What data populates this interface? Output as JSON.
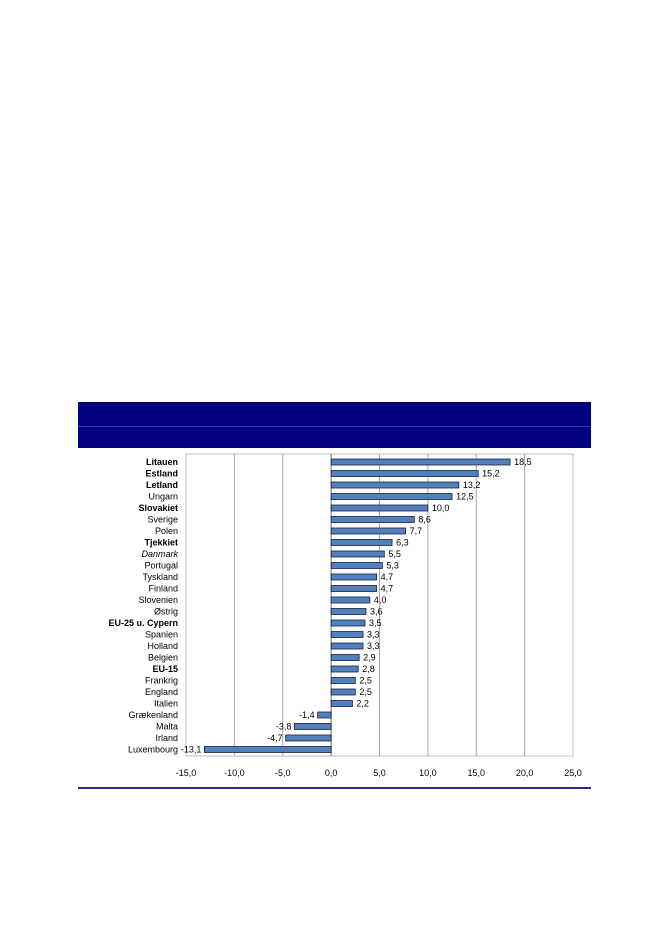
{
  "colors": {
    "header": "#000080",
    "bar_fill": "#4f81bd",
    "bar_stroke": "#1f1f3f",
    "grid": "#a6a6a6",
    "rule": "#2a2a8c"
  },
  "chart_data": {
    "type": "bar",
    "orientation": "horizontal",
    "title": "",
    "xlabel": "",
    "ylabel": "",
    "xlim": [
      -15,
      25
    ],
    "grid": true,
    "x_ticks": [
      "-15,0",
      "-10,0",
      "-5,0",
      "0,0",
      "5,0",
      "10,0",
      "15,0",
      "20,0",
      "25,0"
    ],
    "categories": [
      "Litauen",
      "Estland",
      "Letland",
      "Ungarn",
      "Slovakiet",
      "Sverige",
      "Polen",
      "Tjekkiet",
      "Danmark",
      "Portugal",
      "Tyskland",
      "Finland",
      "Slovenien",
      "Østrig",
      "EU-25 u. Cypern",
      "Spanien",
      "Holland",
      "Belgien",
      "EU-15",
      "Frankrig",
      "England",
      "Italien",
      "Grækenland",
      "Malta",
      "Irland",
      "Luxembourg"
    ],
    "bold_categories": [
      "Litauen",
      "Estland",
      "Letland",
      "Slovakiet",
      "Tjekkiet",
      "EU-25 u. Cypern",
      "EU-15"
    ],
    "italic_categories": [
      "Danmark"
    ],
    "values": [
      18.5,
      15.2,
      13.2,
      12.5,
      10.0,
      8.6,
      7.7,
      6.3,
      5.5,
      5.3,
      4.7,
      4.7,
      4.0,
      3.6,
      3.5,
      3.3,
      3.3,
      2.9,
      2.8,
      2.5,
      2.5,
      2.2,
      -1.4,
      -3.8,
      -4.7,
      -13.1
    ],
    "value_labels": [
      "18,5",
      "15,2",
      "13,2",
      "12,5",
      "10,0",
      "8,6",
      "7,7",
      "6,3",
      "5,5",
      "5,3",
      "4,7",
      "4,7",
      "4,0",
      "3,6",
      "3,5",
      "3,3",
      "3,3",
      "2,9",
      "2,8",
      "2,5",
      "2,5",
      "2,2",
      "-1,4",
      "-3,8",
      "-4,7",
      "-13,1"
    ]
  }
}
